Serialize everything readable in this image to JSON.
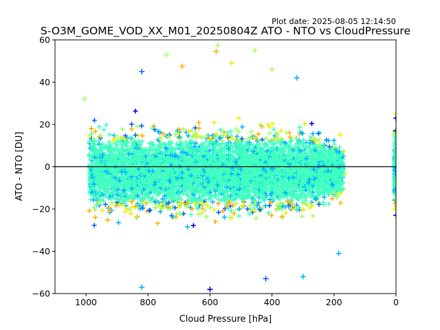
{
  "chart_data": {
    "type": "scatter",
    "plot_date": "Plot date: 2025-08-05 12:14:50",
    "title": "S-O3M_GOME_VOD_XX_M01_20250804Z ATO - NTO vs CloudPressure",
    "xlabel": "Cloud Pressure [hPa]",
    "ylabel": "ATO - NTO [DU]",
    "xlim": [
      1100,
      0
    ],
    "ylim": [
      -60,
      60
    ],
    "x_inverted": true,
    "x_ticks": [
      1000,
      800,
      600,
      400,
      200,
      0
    ],
    "y_ticks": [
      -60,
      -40,
      -20,
      0,
      20,
      40,
      60
    ],
    "zero_line": 0,
    "grid": false,
    "legend": "none",
    "marker": "plus",
    "colors": [
      "#0000cc",
      "#0060ff",
      "#00b4ff",
      "#40ffc0",
      "#a0ff60",
      "#f0f000",
      "#ffb000"
    ],
    "clusters": [
      {
        "x_range": [
          990,
          170
        ],
        "y_center": -2,
        "y_spread": 26,
        "note": "main cloud-pressure population"
      },
      {
        "x_range": [
          5,
          0
        ],
        "y_center": 0,
        "y_spread": 25,
        "note": "points near 0 hPa"
      }
    ],
    "sample_points": [
      {
        "x": 575,
        "y": 57.5
      },
      {
        "x": 455,
        "y": 55
      },
      {
        "x": 740,
        "y": 53
      },
      {
        "x": 580,
        "y": 54.5
      },
      {
        "x": 690,
        "y": 47.5
      },
      {
        "x": 820,
        "y": 45
      },
      {
        "x": 530,
        "y": 49
      },
      {
        "x": 400,
        "y": 46
      },
      {
        "x": 320,
        "y": 42
      },
      {
        "x": 1005,
        "y": 32
      },
      {
        "x": 180,
        "y": 15
      },
      {
        "x": 165,
        "y": -3.5
      },
      {
        "x": 185,
        "y": -41
      },
      {
        "x": 600,
        "y": -58
      },
      {
        "x": 820,
        "y": -57
      },
      {
        "x": 420,
        "y": -53
      },
      {
        "x": 300,
        "y": -52
      },
      {
        "x": 0,
        "y": 25
      },
      {
        "x": 0,
        "y": -23
      },
      {
        "x": 0,
        "y": 17
      }
    ]
  }
}
